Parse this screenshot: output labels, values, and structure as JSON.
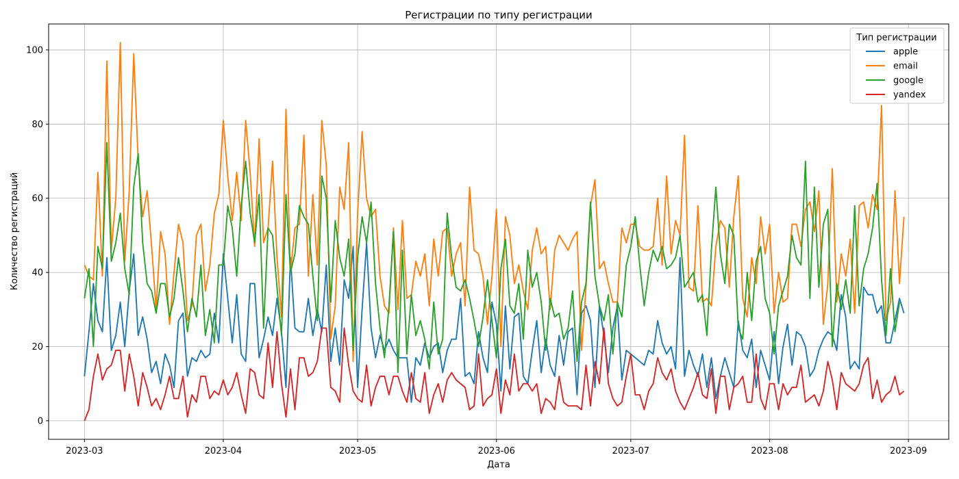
{
  "chart_data": {
    "type": "line",
    "title": "Регистрации по типу регистрации",
    "xlabel": "Дата",
    "ylabel": "Количество регистраций",
    "x_start": "2023-03-01",
    "x_end": "2023-08-31",
    "xlim": [
      "2023-02-21",
      "2023-09-10"
    ],
    "ylim": [
      -5,
      107
    ],
    "xticks": [
      {
        "date": "2023-03-01",
        "label": "2023-03"
      },
      {
        "date": "2023-04-01",
        "label": "2023-04"
      },
      {
        "date": "2023-05-01",
        "label": "2023-05"
      },
      {
        "date": "2023-06-01",
        "label": "2023-06"
      },
      {
        "date": "2023-07-01",
        "label": "2023-07"
      },
      {
        "date": "2023-08-01",
        "label": "2023-08"
      },
      {
        "date": "2023-09-01",
        "label": "2023-09"
      }
    ],
    "yticks": [
      0,
      20,
      40,
      60,
      80,
      100
    ],
    "grid": true,
    "legend": {
      "title": "Тип регистрации",
      "placement": "top-right"
    },
    "series": [
      {
        "name": "apple",
        "color": "#1f77b4",
        "values": [
          12,
          24,
          37,
          27,
          24,
          44,
          19,
          23,
          32,
          20,
          35,
          45,
          23,
          28,
          22,
          13,
          16,
          10,
          18,
          15,
          9,
          27,
          29,
          12,
          17,
          16,
          19,
          17,
          18,
          29,
          21,
          45,
          33,
          21,
          34,
          18,
          16,
          37,
          37,
          17,
          22,
          28,
          23,
          33,
          24,
          9,
          44,
          25,
          24,
          24,
          33,
          23,
          30,
          24,
          42,
          16,
          25,
          15,
          38,
          33,
          47,
          9,
          30,
          48,
          25,
          17,
          23,
          19,
          22,
          19,
          17,
          17,
          17,
          5,
          17,
          15,
          21,
          17,
          20,
          21,
          13,
          19,
          22,
          22,
          33,
          12,
          13,
          10,
          24,
          17,
          13,
          32,
          26,
          8,
          31,
          14,
          28,
          29,
          12,
          10,
          19,
          27,
          13,
          22,
          15,
          12,
          23,
          15,
          24,
          25,
          7,
          29,
          31,
          27,
          9,
          31,
          23,
          13,
          25,
          31,
          11,
          19,
          18,
          17,
          16,
          15,
          19,
          18,
          27,
          21,
          18,
          20,
          14,
          44,
          12,
          19,
          15,
          12,
          18,
          9,
          17,
          6,
          12,
          17,
          13,
          9,
          27,
          19,
          17,
          22,
          9,
          19,
          15,
          11,
          24,
          10,
          20,
          26,
          15,
          24,
          23,
          20,
          12,
          14,
          19,
          22,
          24,
          23,
          19,
          34,
          28,
          14,
          16,
          14,
          36,
          34,
          34,
          29,
          31,
          21,
          21,
          27,
          33,
          29
        ]
      },
      {
        "name": "email",
        "color": "#ff7f0e",
        "values": [
          42,
          39,
          38,
          67,
          39,
          97,
          46,
          60,
          102,
          43,
          62,
          99,
          70,
          55,
          62,
          47,
          30,
          51,
          45,
          26,
          40,
          53,
          48,
          27,
          31,
          50,
          53,
          35,
          42,
          56,
          61,
          81,
          66,
          54,
          67,
          54,
          81,
          67,
          47,
          76,
          48,
          52,
          70,
          44,
          28,
          84,
          40,
          52,
          53,
          77,
          39,
          61,
          42,
          81,
          69,
          22,
          31,
          63,
          57,
          75,
          16,
          56,
          78,
          60,
          55,
          57,
          39,
          31,
          29,
          52,
          30,
          54,
          33,
          34,
          43,
          39,
          45,
          31,
          49,
          39,
          51,
          52,
          39,
          45,
          48,
          31,
          63,
          46,
          45,
          39,
          26,
          39,
          57,
          20,
          55,
          50,
          37,
          42,
          35,
          30,
          46,
          52,
          45,
          47,
          30,
          46,
          50,
          48,
          46,
          49,
          51,
          19,
          36,
          58,
          65,
          41,
          43,
          37,
          32,
          32,
          52,
          48,
          53,
          53,
          47,
          46,
          46,
          47,
          60,
          42,
          66,
          45,
          54,
          50,
          77,
          36,
          35,
          58,
          32,
          33,
          31,
          47,
          54,
          52,
          36,
          55,
          66,
          33,
          28,
          44,
          37,
          55,
          45,
          53,
          29,
          40,
          32,
          33,
          53,
          53,
          47,
          57,
          59,
          51,
          62,
          26,
          37,
          68,
          32,
          45,
          39,
          49,
          29,
          58,
          59,
          52,
          61,
          57,
          85,
          27,
          32,
          62,
          37,
          55
        ]
      },
      {
        "name": "google",
        "color": "#2ca02c",
        "values": [
          33,
          41,
          20,
          47,
          41,
          75,
          43,
          48,
          56,
          41,
          34,
          63,
          72,
          48,
          37,
          35,
          29,
          37,
          37,
          28,
          33,
          44,
          35,
          24,
          33,
          28,
          42,
          23,
          30,
          21,
          42,
          42,
          58,
          52,
          39,
          58,
          70,
          56,
          48,
          61,
          25,
          52,
          50,
          36,
          23,
          61,
          40,
          45,
          58,
          55,
          53,
          39,
          27,
          66,
          60,
          32,
          54,
          44,
          39,
          49,
          19,
          44,
          55,
          48,
          59,
          37,
          25,
          17,
          31,
          51,
          13,
          46,
          18,
          34,
          23,
          27,
          22,
          14,
          32,
          18,
          22,
          56,
          44,
          36,
          35,
          38,
          33,
          27,
          20,
          28,
          38,
          27,
          17,
          41,
          49,
          31,
          29,
          37,
          22,
          46,
          36,
          40,
          32,
          19,
          33,
          28,
          29,
          22,
          25,
          35,
          16,
          32,
          37,
          59,
          39,
          31,
          27,
          34,
          18,
          32,
          28,
          42,
          47,
          55,
          42,
          31,
          40,
          46,
          43,
          47,
          41,
          42,
          44,
          50,
          36,
          38,
          40,
          32,
          34,
          23,
          46,
          63,
          45,
          37,
          53,
          50,
          25,
          22,
          40,
          27,
          43,
          47,
          33,
          29,
          18,
          31,
          35,
          39,
          50,
          44,
          42,
          70,
          33,
          63,
          36,
          53,
          57,
          20,
          37,
          30,
          38,
          29,
          58,
          31,
          41,
          45,
          52,
          64,
          38,
          23,
          41,
          24,
          32
        ]
      },
      {
        "name": "yandex",
        "color": "#d62728",
        "values": [
          0,
          3,
          12,
          18,
          11,
          14,
          15,
          19,
          19,
          8,
          18,
          12,
          4,
          13,
          9,
          4,
          6,
          3,
          7,
          12,
          6,
          6,
          12,
          1,
          7,
          5,
          12,
          12,
          6,
          8,
          7,
          11,
          7,
          9,
          13,
          7,
          2,
          14,
          13,
          7,
          6,
          21,
          9,
          24,
          10,
          1,
          14,
          3,
          17,
          17,
          12,
          13,
          16,
          25,
          25,
          9,
          8,
          5,
          25,
          15,
          8,
          6,
          5,
          15,
          4,
          9,
          12,
          12,
          7,
          12,
          12,
          8,
          5,
          13,
          6,
          5,
          13,
          2,
          7,
          10,
          5,
          11,
          13,
          11,
          10,
          9,
          3,
          4,
          18,
          4,
          6,
          7,
          14,
          2,
          11,
          7,
          18,
          8,
          10,
          10,
          8,
          10,
          2,
          6,
          5,
          3,
          12,
          5,
          4,
          4,
          4,
          3,
          15,
          4,
          16,
          10,
          25,
          10,
          6,
          4,
          5,
          12,
          18,
          7,
          7,
          3,
          8,
          10,
          17,
          13,
          11,
          14,
          8,
          5,
          3,
          6,
          9,
          13,
          7,
          6,
          14,
          2,
          12,
          12,
          3,
          9,
          10,
          12,
          5,
          5,
          18,
          6,
          3,
          10,
          10,
          3,
          10,
          7,
          9,
          9,
          15,
          5,
          6,
          7,
          4,
          8,
          16,
          11,
          3,
          13,
          10,
          9,
          8,
          10,
          15,
          17,
          6,
          11,
          5,
          7,
          8,
          12,
          7,
          8
        ]
      }
    ]
  }
}
